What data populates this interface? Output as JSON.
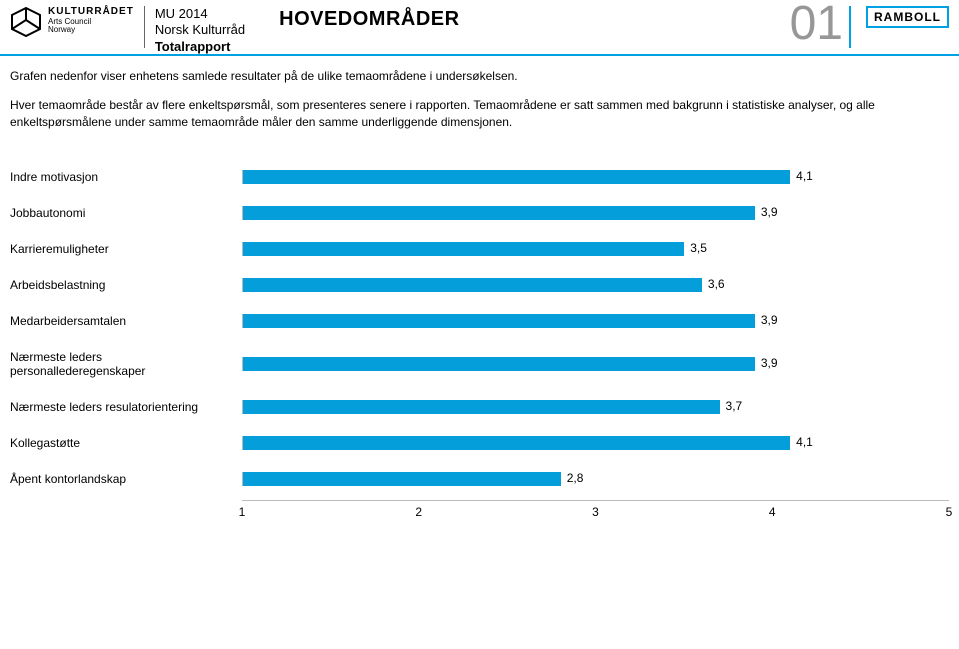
{
  "header": {
    "logo_label1": "KULTURRÅDET",
    "logo_label2": "Arts Council",
    "logo_label3": "Norway",
    "mu": "MU 2014",
    "nkr": "Norsk Kulturråd",
    "tot": "Totalrapport",
    "title": "HOVEDOMRÅDER",
    "page_num": "01",
    "brand": "RAMBOLL"
  },
  "intro": {
    "p1": "Grafen nedenfor viser enhetens samlede resultater på de ulike temaområdene i undersøkelsen.",
    "p2": "Hver temaområde består av flere enkeltspørsmål, som presenteres senere i rapporten. Temaområdene er satt sammen med bakgrunn i statistiske analyser, og alle enkeltspørsmålene under samme temaområde måler den samme underliggende dimensjonen."
  },
  "chart": {
    "type": "bar",
    "xmin": 1,
    "xmax": 5,
    "ticks": [
      1,
      2,
      3,
      4,
      5
    ],
    "bar_color": "#049fda",
    "border_color": "#bbbbbb",
    "background_color": "#ffffff",
    "label_fontsize": 12,
    "value_fontsize": 12,
    "rows": [
      {
        "label": "Indre motivasjon",
        "value": 4.1,
        "display": "4,1"
      },
      {
        "label": "Jobbautonomi",
        "value": 3.9,
        "display": "3,9"
      },
      {
        "label": "Karrieremuligheter",
        "value": 3.5,
        "display": "3,5"
      },
      {
        "label": "Arbeidsbelastning",
        "value": 3.6,
        "display": "3,6"
      },
      {
        "label": "Medarbeidersamtalen",
        "value": 3.9,
        "display": "3,9"
      },
      {
        "label": "Nærmeste leders personallederegenskaper",
        "value": 3.9,
        "display": "3,9"
      },
      {
        "label": "Nærmeste leders resulatorientering",
        "value": 3.7,
        "display": "3,7"
      },
      {
        "label": "Kollegastøtte",
        "value": 4.1,
        "display": "4,1"
      },
      {
        "label": "Åpent kontorlandskap",
        "value": 2.8,
        "display": "2,8"
      }
    ]
  }
}
